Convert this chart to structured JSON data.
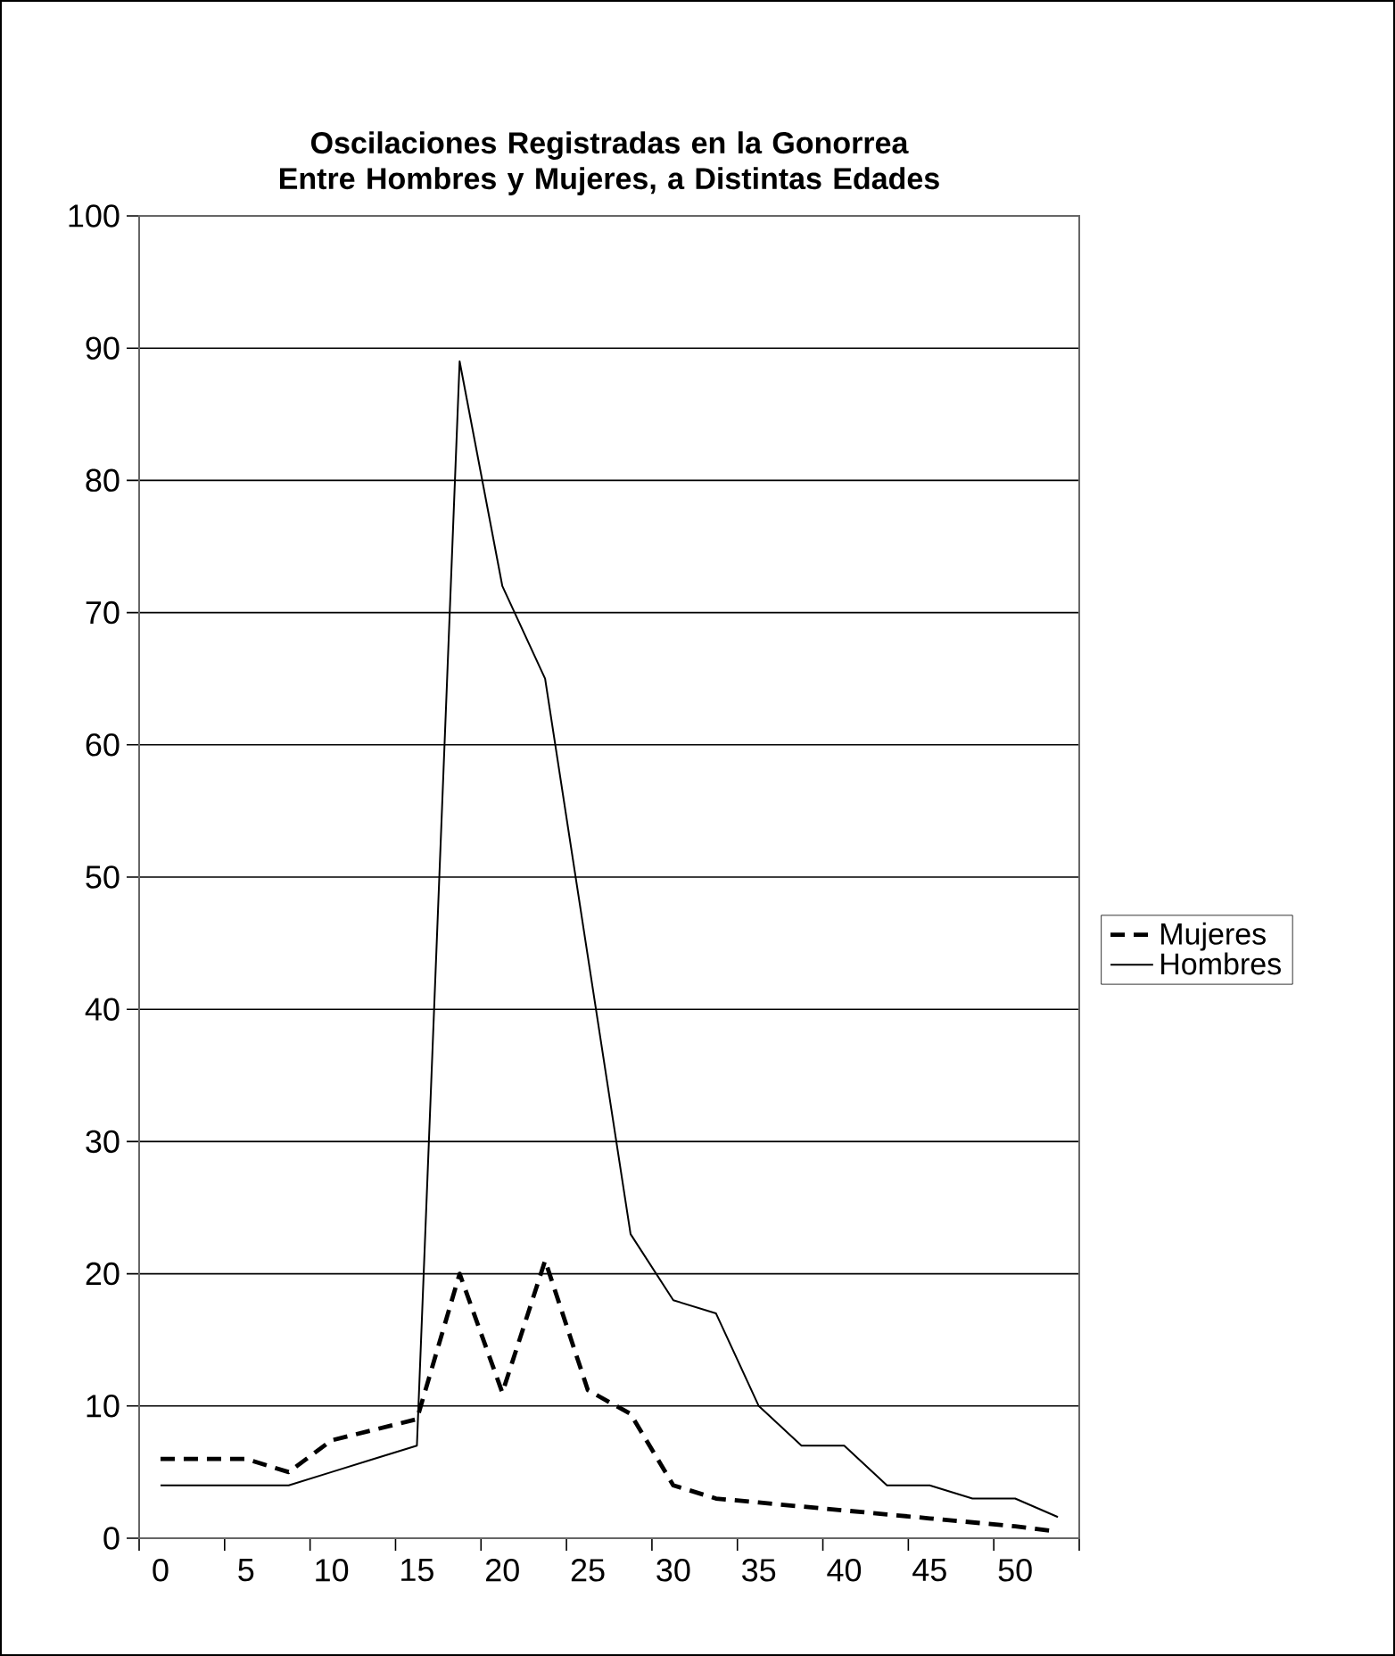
{
  "chart_data": {
    "type": "line",
    "title": "Oscilaciones Registradas en la Gonorrea Entre Hombres y Mujeres, a Distintas Edades",
    "categories": [
      "0",
      null,
      "5",
      null,
      "10",
      null,
      "15",
      null,
      "20",
      null,
      "25",
      null,
      "30",
      null,
      "35",
      null,
      "40",
      null,
      "45",
      null,
      "50",
      null
    ],
    "series": [
      {
        "name": "Mujeres",
        "color": "#000000",
        "line_style": "dashed",
        "values": [
          6,
          6,
          6,
          5,
          7.4,
          8.2,
          9,
          20,
          11,
          21,
          11.2,
          9.4,
          4,
          3,
          2.7,
          2.4,
          2.1,
          1.8,
          1.5,
          1.2,
          0.9,
          0.5
        ]
      },
      {
        "name": "Hombres",
        "color": "#000000",
        "line_style": "solid",
        "values": [
          4,
          4,
          4,
          4,
          5,
          6,
          7,
          89,
          72,
          65,
          44,
          23,
          18,
          17,
          10,
          7,
          7,
          4,
          4,
          3,
          3,
          1.6
        ]
      }
    ],
    "ylim": [
      0,
      100
    ],
    "yticks": [
      0,
      10,
      20,
      30,
      40,
      50,
      60,
      70,
      80,
      90,
      100
    ],
    "grid": "y",
    "legend": "right",
    "marker": "none"
  }
}
